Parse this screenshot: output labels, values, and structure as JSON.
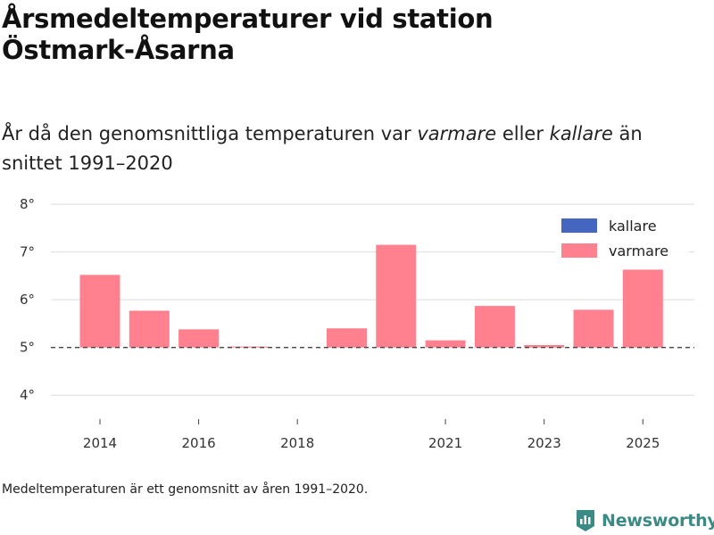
{
  "title_line1": "Årsmedeltemperaturer vid station",
  "title_line2": "Östmark-Åsarna",
  "subtitle": {
    "part1": "År då den genomsnittliga temperaturen var ",
    "warmer_word": "varmare",
    "part2": " eller ",
    "colder_word": "kallare",
    "part3": " än snittet 1991–2020"
  },
  "footnote": "Medeltemperaturen är ett genomsnitt av åren 1991–2020.",
  "brand": "Newsworthy",
  "colors": {
    "warmer": "#ff808f",
    "colder": "#4466c0",
    "grid": "#dddddd",
    "baseline": "#444444",
    "brand": "#3a8a86"
  },
  "chart_data": {
    "type": "bar",
    "title": "Årsmedeltemperaturer vid station Östmark-Åsarna",
    "x": [
      2014,
      2015,
      2016,
      2017,
      2018,
      2019,
      2020,
      2021,
      2022,
      2023,
      2024,
      2025
    ],
    "values": [
      6.52,
      5.77,
      5.38,
      5.02,
      null,
      5.4,
      7.15,
      5.15,
      5.87,
      5.05,
      5.79,
      6.63
    ],
    "baseline": 5.0,
    "ylim": [
      3.5,
      8.3
    ],
    "y_ticks": [
      4,
      5,
      6,
      7,
      8
    ],
    "y_tick_labels": [
      "4°",
      "5°",
      "6°",
      "7°",
      "8°"
    ],
    "x_ticks": [
      2014,
      2016,
      2018,
      2021,
      2023,
      2025
    ],
    "x_tick_labels": [
      "2014",
      "2016",
      "2018",
      "2021",
      "2023",
      "2025"
    ],
    "legend": [
      {
        "name": "kallare",
        "color": "#4466c0"
      },
      {
        "name": "varmare",
        "color": "#ff808f"
      }
    ],
    "legend_position": "top-right",
    "xlabel": "",
    "ylabel": ""
  }
}
